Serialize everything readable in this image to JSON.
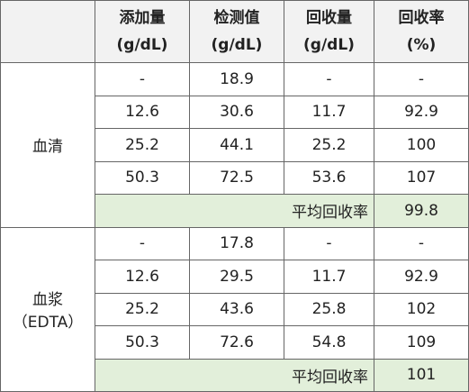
{
  "table": {
    "headers": [
      [
        "添加量",
        "(g/dL)"
      ],
      [
        "检测值",
        "(g/dL)"
      ],
      [
        "回收量",
        "(g/dL)"
      ],
      [
        "回收率",
        "(%)"
      ]
    ],
    "groups": [
      {
        "label": [
          "血清"
        ],
        "rows": [
          [
            "-",
            "18.9",
            "-",
            "-"
          ],
          [
            "12.6",
            "30.6",
            "11.7",
            "92.9"
          ],
          [
            "25.2",
            "44.1",
            "25.2",
            "100"
          ],
          [
            "50.3",
            "72.5",
            "53.6",
            "107"
          ]
        ],
        "average_label": "平均回收率",
        "average": "99.8"
      },
      {
        "label": [
          "血浆",
          "（EDTA）"
        ],
        "rows": [
          [
            "-",
            "17.8",
            "-",
            "-"
          ],
          [
            "12.6",
            "29.5",
            "11.7",
            "92.9"
          ],
          [
            "25.2",
            "43.6",
            "25.8",
            "102"
          ],
          [
            "50.3",
            "72.6",
            "54.8",
            "109"
          ]
        ],
        "average_label": "平均回收率",
        "average": "101"
      }
    ]
  }
}
